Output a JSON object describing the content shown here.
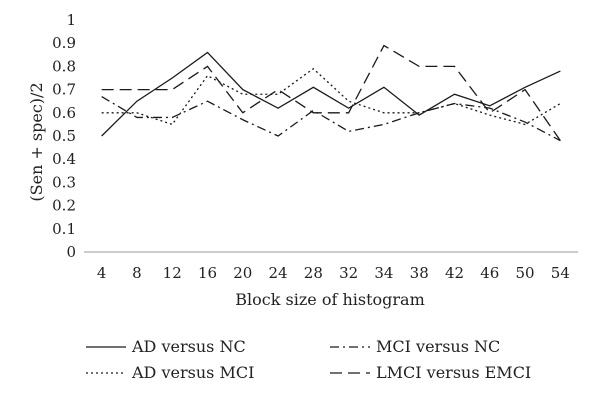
{
  "chart_data": {
    "type": "line",
    "xlabel": "Block size of histogram",
    "ylabel": "(Sen + spec)/2",
    "ylim": [
      0,
      1
    ],
    "yticks": [
      "0",
      "0.1",
      "0.2",
      "0.3",
      "0.4",
      "0.5",
      "0.6",
      "0.7",
      "0.8",
      "0.9",
      "1"
    ],
    "categories": [
      "4",
      "8",
      "12",
      "16",
      "20",
      "24",
      "28",
      "32",
      "34",
      "38",
      "42",
      "46",
      "50",
      "54"
    ],
    "grid": false,
    "legend_position": "bottom",
    "series": [
      {
        "name": "AD versus NC",
        "dash": "solid",
        "values": [
          0.5,
          0.65,
          0.75,
          0.86,
          0.7,
          0.62,
          0.71,
          0.62,
          0.71,
          0.59,
          0.68,
          0.63,
          0.71,
          0.78
        ]
      },
      {
        "name": "MCI versus NC",
        "dash": "dashdot",
        "values": [
          0.67,
          0.58,
          0.58,
          0.65,
          0.57,
          0.5,
          0.61,
          0.52,
          0.55,
          0.6,
          0.64,
          0.62,
          0.56,
          0.48
        ]
      },
      {
        "name": "AD versus MCI",
        "dash": "dotted",
        "values": [
          0.6,
          0.6,
          0.55,
          0.76,
          0.68,
          0.68,
          0.79,
          0.65,
          0.6,
          0.6,
          0.64,
          0.59,
          0.55,
          0.64
        ]
      },
      {
        "name": "LMCI versus EMCI",
        "dash": "dashed",
        "values": [
          0.7,
          0.7,
          0.7,
          0.8,
          0.6,
          0.7,
          0.6,
          0.6,
          0.89,
          0.8,
          0.8,
          0.6,
          0.7,
          0.48
        ]
      }
    ],
    "line_color": "#1a1a1a"
  }
}
